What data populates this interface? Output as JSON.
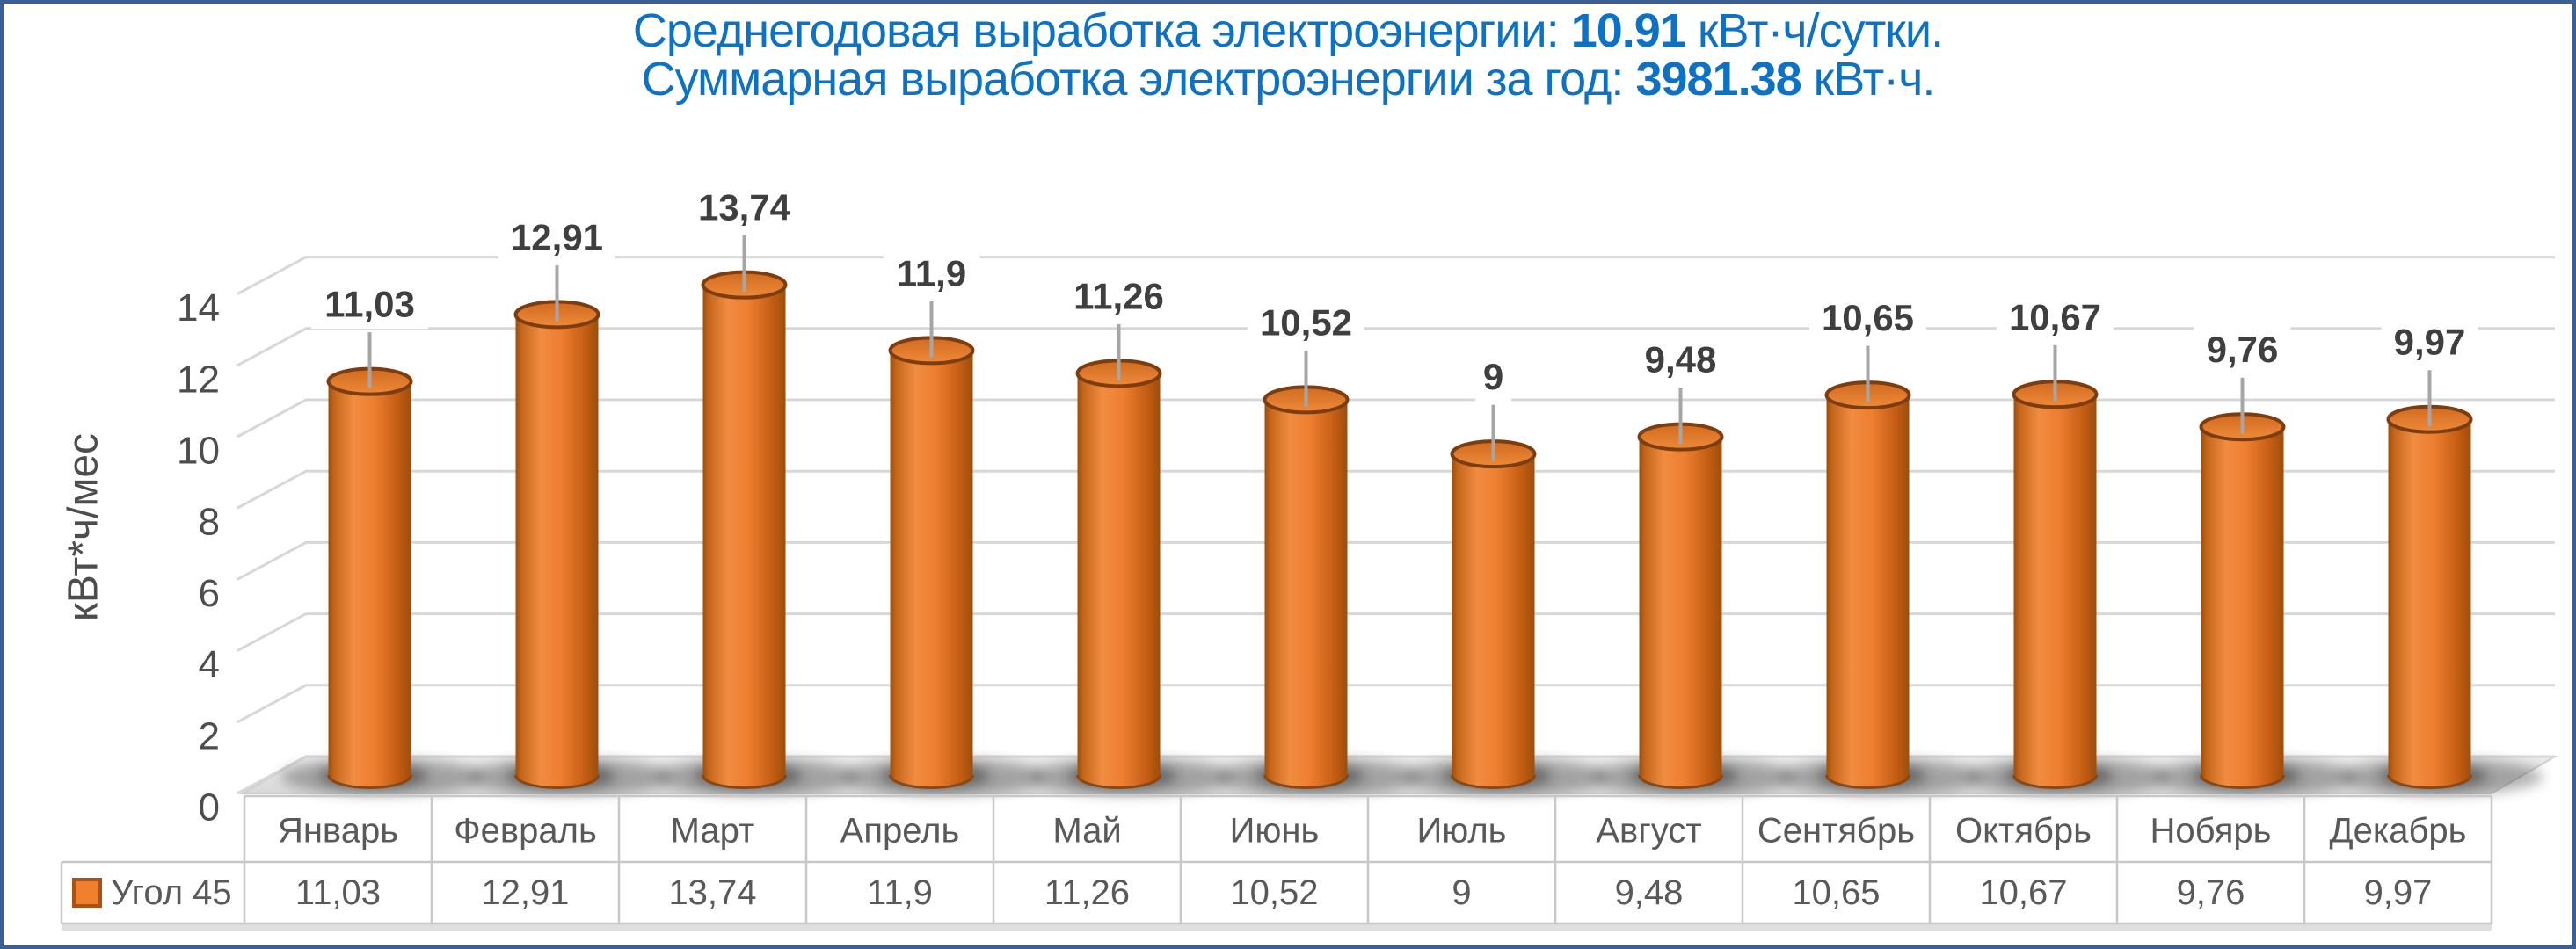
{
  "frame": {
    "border_color": "#3a6096"
  },
  "title": {
    "color": "#0d72c4",
    "line1": {
      "prefix": "Среднегодовая выработка электроэнергии: ",
      "value": "10.91",
      "suffix": " кВт·ч/сутки."
    },
    "line2": {
      "prefix": "Суммарная выработка электроэнергии за год: ",
      "value": "3981.38",
      "suffix": " кВт·ч."
    }
  },
  "chart_data": {
    "type": "bar",
    "style": "3d-cylinder",
    "categories": [
      "Январь",
      "Февраль",
      "Март",
      "Апрель",
      "Май",
      "Июнь",
      "Июль",
      "Август",
      "Сентябрь",
      "Октябрь",
      "Нобярь",
      "Декабрь"
    ],
    "series": [
      {
        "name": "Угол 45",
        "values": [
          11.03,
          12.91,
          13.74,
          11.9,
          11.26,
          10.52,
          9,
          9.48,
          10.65,
          10.67,
          9.76,
          9.97
        ],
        "labels": [
          "11,03",
          "12,91",
          "13,74",
          "11,9",
          "11,26",
          "10,52",
          "9",
          "9,48",
          "10,65",
          "10,67",
          "9,76",
          "9,97"
        ],
        "color": "#ED7D31"
      }
    ],
    "ylabel": "кВт*ч/мес",
    "ylim": [
      0,
      14
    ],
    "ytick_step": 2,
    "yticks": [
      0,
      2,
      4,
      6,
      8,
      10,
      12,
      14
    ],
    "grid": true,
    "legend_position": "bottom-table",
    "data_table_shown": true
  },
  "colors": {
    "bar_main": "#ED7D31",
    "bar_dark_edge": "#9c4e0d",
    "bar_top_stroke": "#7c3d10",
    "grid_line": "#d7d7d7",
    "axis_text": "#4d4d4d",
    "table_text": "#595959",
    "data_label_text": "#3f3f3f",
    "leader_line": "#a6a6a6",
    "table_border": "#c8c8c8",
    "floor_light": "#ececec",
    "floor_dark": "#d8d8d8"
  }
}
